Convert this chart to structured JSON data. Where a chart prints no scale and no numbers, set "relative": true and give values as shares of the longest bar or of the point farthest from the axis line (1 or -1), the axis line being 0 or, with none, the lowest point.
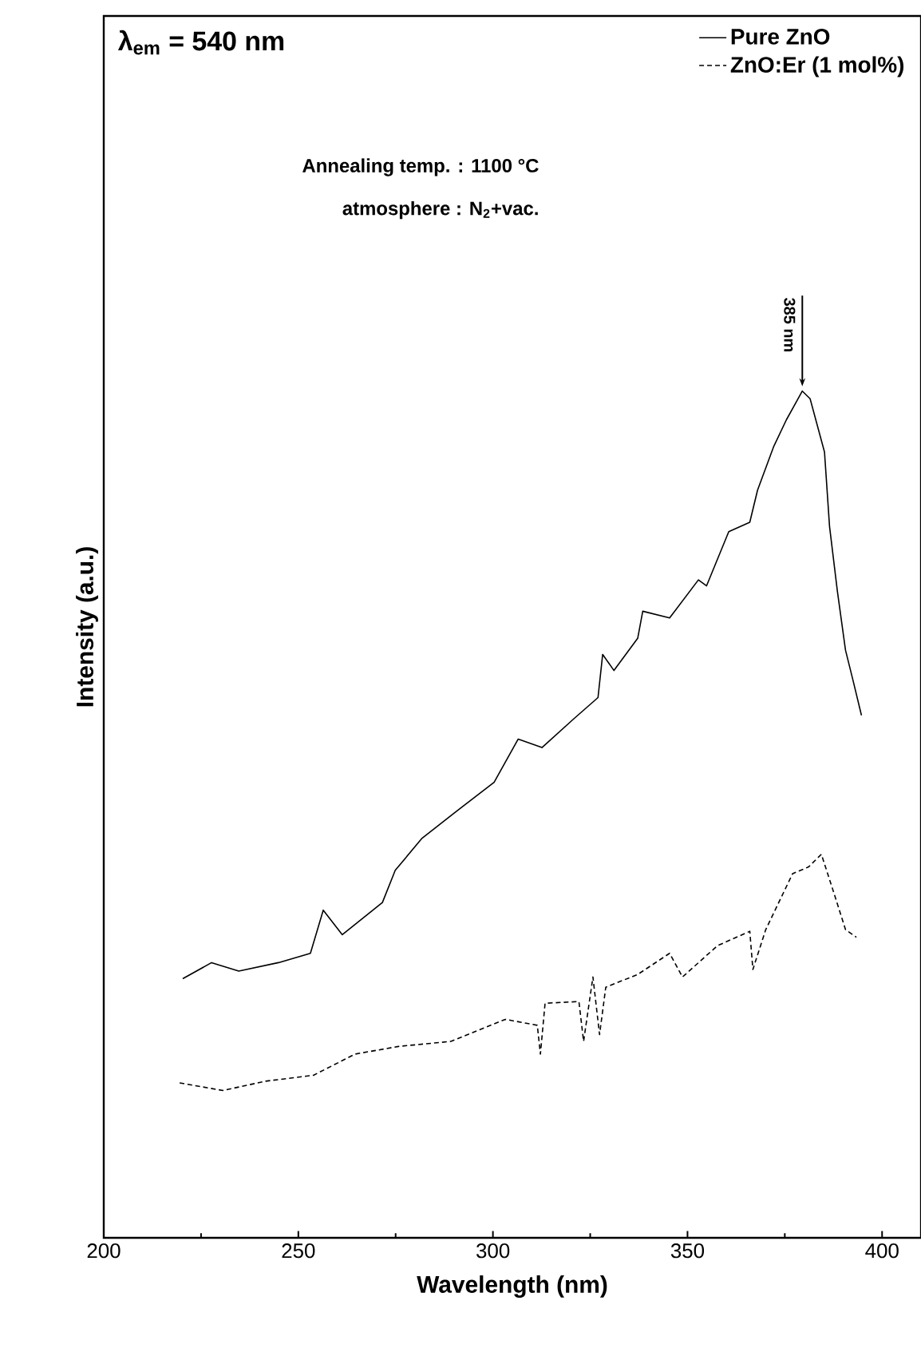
{
  "chart_data": {
    "type": "line",
    "relative": true,
    "xlabel": "Wavelength (nm)",
    "ylabel": "Intensity (a.u.)",
    "xlim": [
      200,
      410
    ],
    "xticks": [
      200,
      250,
      300,
      350,
      400
    ],
    "tick_labels": "x",
    "legend": "top right",
    "marker": "none",
    "annotations": [
      "λ$_{em}$ = 540 nm",
      "Annealing temp. : 1100 °C",
      "atmosphere : N$_{2}$+vac.",
      {
        "text": "385 nm",
        "x": 379.5,
        "y": 1.0
      }
    ],
    "series": [
      {
        "name": "Pure ZnO",
        "color": "#000000",
        "line_style": "solid",
        "x": [
          220.3,
          227.7,
          234.7,
          244.9,
          253.1,
          256.4,
          261.3,
          271.6,
          274.9,
          281.8,
          292.1,
          300.3,
          306.5,
          312.6,
          320.8,
          327.0,
          328.2,
          331.1,
          337.2,
          338.5,
          345.4,
          352.8,
          354.9,
          360.6,
          366.0,
          368.0,
          372.1,
          375.4,
          379.5,
          381.5,
          385.2,
          386.5,
          388.5,
          390.6,
          392.6,
          394.7
        ],
        "values": [
          0.306,
          0.325,
          0.315,
          0.325,
          0.336,
          0.387,
          0.358,
          0.396,
          0.434,
          0.472,
          0.509,
          0.538,
          0.589,
          0.579,
          0.613,
          0.638,
          0.689,
          0.67,
          0.708,
          0.74,
          0.732,
          0.777,
          0.77,
          0.834,
          0.845,
          0.883,
          0.934,
          0.966,
          1.0,
          0.991,
          0.928,
          0.84,
          0.764,
          0.694,
          0.657,
          0.617
        ]
      },
      {
        "name": "ZnO:Er (1 mol%)",
        "color": "#000000",
        "line_style": "dashed",
        "x": [
          219.5,
          230.6,
          241.6,
          253.9,
          264.6,
          275.7,
          289.2,
          303.2,
          311.4,
          312.2,
          313.4,
          322.1,
          323.3,
          325.7,
          327.4,
          329.0,
          337.2,
          345.4,
          348.7,
          357.7,
          366.0,
          366.8,
          370.1,
          377.0,
          381.1,
          384.4,
          387.7,
          390.6,
          393.4
        ],
        "values": [
          0.183,
          0.174,
          0.185,
          0.192,
          0.217,
          0.226,
          0.232,
          0.258,
          0.251,
          0.217,
          0.277,
          0.279,
          0.232,
          0.308,
          0.24,
          0.296,
          0.311,
          0.336,
          0.308,
          0.345,
          0.362,
          0.317,
          0.364,
          0.43,
          0.438,
          0.453,
          0.406,
          0.364,
          0.355
        ]
      }
    ]
  }
}
